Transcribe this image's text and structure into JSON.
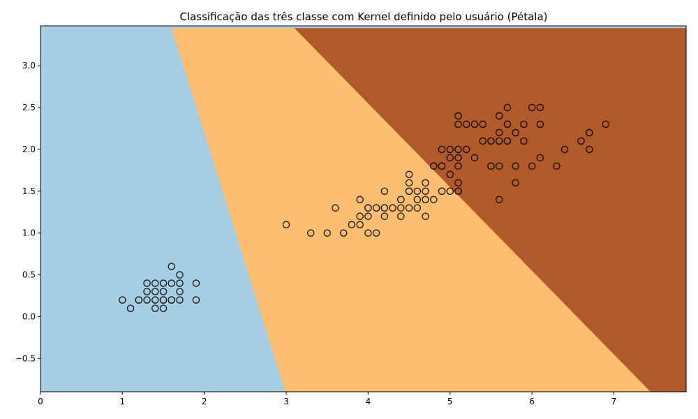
{
  "chart_data": {
    "type": "scatter",
    "title": "Classificação das três classe com Kernel definido pelo usuário (Pétala)",
    "xlabel": "",
    "ylabel": "",
    "xlim": [
      0,
      7.9
    ],
    "ylim": [
      -0.9,
      3.45
    ],
    "xticks": [
      "0",
      "1",
      "2",
      "3",
      "4",
      "5",
      "6",
      "7"
    ],
    "yticks": [
      "−0.5",
      "0.0",
      "0.5",
      "1.0",
      "1.5",
      "2.0",
      "2.5",
      "3.0"
    ],
    "grid": false,
    "legend": "none",
    "regions": [
      {
        "class": 0,
        "color": "#a6cee3",
        "boundary_to_next": [
          [
            1.6,
            3.45
          ],
          [
            2.99,
            -0.9
          ]
        ]
      },
      {
        "class": 1,
        "color": "#fdbf6f",
        "boundary_to_next": [
          [
            3.1,
            3.45
          ],
          [
            7.45,
            -0.9
          ]
        ]
      },
      {
        "class": 2,
        "color": "#b15928"
      }
    ],
    "points": [
      [
        1.4,
        0.2
      ],
      [
        1.3,
        0.2
      ],
      [
        1.5,
        0.2
      ],
      [
        1.7,
        0.4
      ],
      [
        1.4,
        0.3
      ],
      [
        1.5,
        0.1
      ],
      [
        1.1,
        0.1
      ],
      [
        1.2,
        0.2
      ],
      [
        1.5,
        0.4
      ],
      [
        1.3,
        0.4
      ],
      [
        1.7,
        0.3
      ],
      [
        1.0,
        0.2
      ],
      [
        1.9,
        0.2
      ],
      [
        1.6,
        0.4
      ],
      [
        1.6,
        0.2
      ],
      [
        1.6,
        0.6
      ],
      [
        1.9,
        0.4
      ],
      [
        1.4,
        0.1
      ],
      [
        1.3,
        0.3
      ],
      [
        1.7,
        0.2
      ],
      [
        1.7,
        0.5
      ],
      [
        1.5,
        0.3
      ],
      [
        1.4,
        0.4
      ],
      [
        1.2,
        0.2
      ],
      [
        1.6,
        0.2
      ],
      [
        1.5,
        0.2
      ],
      [
        4.7,
        1.4
      ],
      [
        4.5,
        1.5
      ],
      [
        4.9,
        1.5
      ],
      [
        4.0,
        1.3
      ],
      [
        4.6,
        1.5
      ],
      [
        3.3,
        1.0
      ],
      [
        3.9,
        1.4
      ],
      [
        3.5,
        1.0
      ],
      [
        4.2,
        1.5
      ],
      [
        4.0,
        1.0
      ],
      [
        4.7,
        1.4
      ],
      [
        3.6,
        1.3
      ],
      [
        4.4,
        1.4
      ],
      [
        4.1,
        1.0
      ],
      [
        4.5,
        1.5
      ],
      [
        3.9,
        1.1
      ],
      [
        4.8,
        1.8
      ],
      [
        4.0,
        1.3
      ],
      [
        4.9,
        1.5
      ],
      [
        4.7,
        1.2
      ],
      [
        4.3,
        1.3
      ],
      [
        4.4,
        1.4
      ],
      [
        4.8,
        1.4
      ],
      [
        5.0,
        1.7
      ],
      [
        4.5,
        1.5
      ],
      [
        3.8,
        1.1
      ],
      [
        3.7,
        1.0
      ],
      [
        5.1,
        1.6
      ],
      [
        4.5,
        1.6
      ],
      [
        4.7,
        1.5
      ],
      [
        4.4,
        1.3
      ],
      [
        4.1,
        1.3
      ],
      [
        4.0,
        1.3
      ],
      [
        4.4,
        1.2
      ],
      [
        4.6,
        1.4
      ],
      [
        4.6,
        1.3
      ],
      [
        3.0,
        1.1
      ],
      [
        4.2,
        1.3
      ],
      [
        4.2,
        1.2
      ],
      [
        3.9,
        1.2
      ],
      [
        4.5,
        1.3
      ],
      [
        4.7,
        1.6
      ],
      [
        4.5,
        1.7
      ],
      [
        5.1,
        1.5
      ],
      [
        5.0,
        1.5
      ],
      [
        4.9,
        1.8
      ],
      [
        4.2,
        1.3
      ],
      [
        4.0,
        1.2
      ],
      [
        4.3,
        1.3
      ],
      [
        4.1,
        1.3
      ],
      [
        6.0,
        2.5
      ],
      [
        5.1,
        1.9
      ],
      [
        5.9,
        2.1
      ],
      [
        5.6,
        1.8
      ],
      [
        5.8,
        2.2
      ],
      [
        6.6,
        2.1
      ],
      [
        6.3,
        1.8
      ],
      [
        5.8,
        1.8
      ],
      [
        6.1,
        2.5
      ],
      [
        5.1,
        2.0
      ],
      [
        5.3,
        1.9
      ],
      [
        5.5,
        2.1
      ],
      [
        5.0,
        2.0
      ],
      [
        5.1,
        2.4
      ],
      [
        5.3,
        2.3
      ],
      [
        5.5,
        1.8
      ],
      [
        6.7,
        2.2
      ],
      [
        6.9,
        2.3
      ],
      [
        5.7,
        2.3
      ],
      [
        4.9,
        2.0
      ],
      [
        6.7,
        2.0
      ],
      [
        4.9,
        1.8
      ],
      [
        5.7,
        2.1
      ],
      [
        6.0,
        1.8
      ],
      [
        4.8,
        1.8
      ],
      [
        5.8,
        1.6
      ],
      [
        6.1,
        1.9
      ],
      [
        6.4,
        2.0
      ],
      [
        5.6,
        2.2
      ],
      [
        5.1,
        1.5
      ],
      [
        5.6,
        1.4
      ],
      [
        6.1,
        2.3
      ],
      [
        5.6,
        2.4
      ],
      [
        5.5,
        1.8
      ],
      [
        5.4,
        2.1
      ],
      [
        5.6,
        2.1
      ],
      [
        5.1,
        2.3
      ],
      [
        5.9,
        2.3
      ],
      [
        5.7,
        2.5
      ],
      [
        5.2,
        2.3
      ],
      [
        5.0,
        1.9
      ],
      [
        5.2,
        2.0
      ],
      [
        5.4,
        2.3
      ],
      [
        5.1,
        1.8
      ],
      [
        5.8,
        2.2
      ],
      [
        5.7,
        2.1
      ],
      [
        5.0,
        1.5
      ],
      [
        5.3,
        2.3
      ],
      [
        5.6,
        2.4
      ]
    ]
  }
}
